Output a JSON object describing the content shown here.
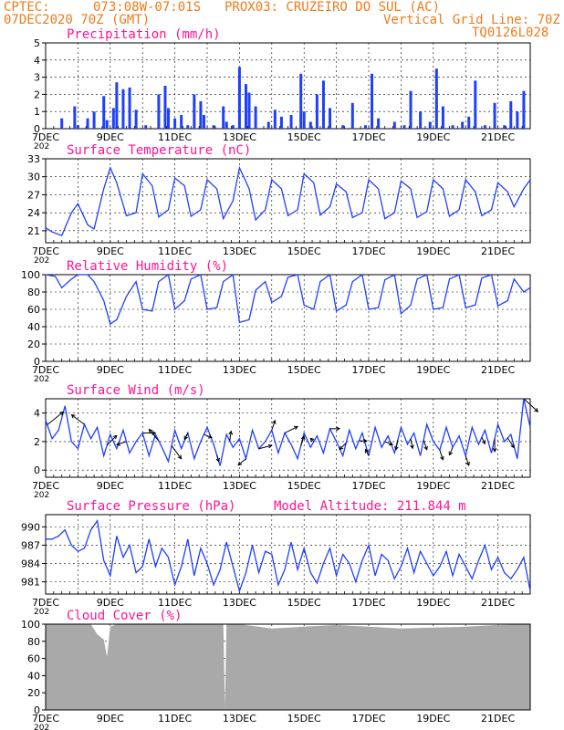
{
  "header": {
    "line1_left": "CPTEC:",
    "line1_coords": "073:08W-07:01S",
    "line1_station": "PROX03: CRUZEIRO DO SUL (AC)",
    "line2_left": "07DEC2020 70Z (GMT)",
    "line2_right": "Vertical Grid Line: 70Z",
    "line3_right": "TQ0126L028",
    "color_header": "#f07a1a",
    "color_title": "#ff1493",
    "color_series": "#1f3fff"
  },
  "x_tick_labels": [
    "7DEC",
    "9DEC",
    "11DEC",
    "13DEC",
    "15DEC",
    "17DEC",
    "19DEC",
    "21DEC"
  ],
  "x_tick_days": [
    7,
    9,
    11,
    13,
    15,
    17,
    19,
    21
  ],
  "x_range_days": [
    7,
    22
  ],
  "year_fragment": "202",
  "chart_data": [
    {
      "type": "bar",
      "title": "Precipitation (mm/h)",
      "ylim": [
        0,
        5
      ],
      "yticks": [
        0,
        1,
        2,
        3,
        4,
        5
      ],
      "color": "#1f3fff",
      "series": [
        {
          "name": "",
          "x": [
            7.5,
            7.9,
            8.0,
            8.3,
            8.5,
            8.8,
            8.9,
            9.1,
            9.2,
            9.4,
            9.6,
            9.8,
            10.1,
            10.5,
            10.7,
            10.8,
            11.0,
            11.2,
            11.4,
            11.6,
            11.8,
            11.9,
            12.2,
            12.5,
            12.6,
            12.8,
            13.0,
            13.2,
            13.3,
            13.5,
            13.9,
            14.1,
            14.3,
            14.6,
            14.9,
            15.0,
            15.2,
            15.4,
            15.6,
            15.8,
            16.2,
            16.5,
            16.9,
            17.1,
            17.3,
            17.8,
            18.1,
            18.3,
            18.6,
            18.9,
            19.1,
            19.3,
            19.6,
            19.9,
            20.1,
            20.3,
            20.6,
            20.9,
            21.2,
            21.4,
            21.6,
            21.8
          ],
          "values": [
            0.6,
            1.3,
            0.2,
            0.6,
            1.0,
            1.9,
            0.5,
            1.2,
            2.7,
            2.3,
            2.4,
            1.1,
            0.2,
            2.0,
            2.5,
            1.2,
            0.6,
            0.8,
            0.2,
            2.0,
            1.6,
            0.8,
            0.2,
            1.3,
            0.4,
            0.2,
            3.6,
            2.6,
            2.1,
            1.3,
            0.4,
            1.1,
            0.7,
            0.8,
            3.2,
            1.0,
            0.4,
            2.0,
            2.8,
            1.2,
            0.2,
            1.5,
            0.2,
            3.2,
            0.6,
            0.4,
            0.2,
            2.2,
            1.0,
            0.4,
            3.5,
            1.3,
            0.2,
            0.4,
            0.7,
            2.8,
            0.2,
            1.5,
            0.2,
            1.6,
            1.0,
            2.2
          ]
        }
      ]
    },
    {
      "type": "line",
      "title": "Surface Temperature (nC)",
      "ylim": [
        19,
        33
      ],
      "yticks": [
        21,
        24,
        27,
        30,
        33
      ],
      "series": [
        {
          "name": "",
          "x": [
            7.0,
            7.2,
            7.5,
            7.8,
            8.0,
            8.3,
            8.5,
            8.8,
            9.0,
            9.2,
            9.5,
            9.8,
            10.0,
            10.3,
            10.5,
            10.8,
            11.0,
            11.3,
            11.5,
            11.8,
            12.0,
            12.3,
            12.5,
            12.8,
            13.0,
            13.3,
            13.5,
            13.8,
            14.0,
            14.3,
            14.5,
            14.8,
            15.0,
            15.3,
            15.5,
            15.8,
            16.0,
            16.3,
            16.5,
            16.8,
            17.0,
            17.3,
            17.5,
            17.8,
            18.0,
            18.3,
            18.5,
            18.8,
            19.0,
            19.3,
            19.5,
            19.8,
            20.0,
            20.3,
            20.5,
            20.8,
            21.0,
            21.3,
            21.5,
            21.8,
            22.0
          ],
          "values": [
            21.5,
            20.8,
            20.2,
            24.0,
            25.5,
            22.0,
            21.3,
            28.0,
            31.5,
            29.0,
            23.5,
            24.0,
            30.5,
            28.5,
            23.3,
            24.5,
            29.8,
            28.5,
            23.4,
            24.5,
            29.5,
            28.0,
            23.0,
            26.0,
            31.5,
            28.0,
            22.8,
            24.5,
            29.5,
            28.0,
            23.5,
            24.5,
            30.5,
            29.0,
            23.6,
            25.0,
            28.8,
            27.5,
            23.2,
            24.0,
            29.5,
            28.0,
            23.0,
            24.0,
            29.3,
            28.0,
            23.2,
            24.2,
            29.5,
            28.0,
            23.4,
            24.5,
            29.5,
            27.5,
            23.5,
            24.5,
            29.0,
            27.5,
            25.0,
            28.0,
            29.5
          ]
        }
      ]
    },
    {
      "type": "line",
      "title": "Relative Humidity (%)",
      "ylim": [
        0,
        100
      ],
      "yticks": [
        0,
        20,
        40,
        60,
        80,
        100
      ],
      "series": [
        {
          "name": "",
          "x": [
            7.0,
            7.3,
            7.5,
            7.8,
            8.0,
            8.3,
            8.5,
            8.8,
            9.0,
            9.2,
            9.5,
            9.8,
            10.0,
            10.3,
            10.5,
            10.8,
            11.0,
            11.3,
            11.5,
            11.8,
            12.0,
            12.3,
            12.5,
            12.8,
            13.0,
            13.3,
            13.5,
            13.8,
            14.0,
            14.3,
            14.5,
            14.8,
            15.0,
            15.3,
            15.5,
            15.8,
            16.0,
            16.3,
            16.5,
            16.8,
            17.0,
            17.3,
            17.5,
            17.8,
            18.0,
            18.3,
            18.5,
            18.8,
            19.0,
            19.3,
            19.5,
            19.8,
            20.0,
            20.3,
            20.5,
            20.8,
            21.0,
            21.3,
            21.5,
            21.8,
            22.0
          ],
          "values": [
            100,
            98,
            85,
            95,
            100,
            100,
            92,
            70,
            43,
            48,
            75,
            92,
            60,
            58,
            92,
            100,
            60,
            70,
            95,
            100,
            60,
            62,
            92,
            100,
            45,
            48,
            82,
            92,
            68,
            75,
            97,
            100,
            65,
            60,
            92,
            100,
            58,
            65,
            92,
            100,
            60,
            62,
            94,
            100,
            55,
            65,
            95,
            100,
            60,
            62,
            95,
            100,
            62,
            65,
            96,
            100,
            64,
            70,
            95,
            80,
            85
          ]
        }
      ]
    },
    {
      "type": "line",
      "title": "Surface Wind (m/s)",
      "ylim": [
        -0.5,
        5
      ],
      "yticks": [
        0,
        2,
        4
      ],
      "series": [
        {
          "name": "",
          "x": [
            7.0,
            7.2,
            7.4,
            7.6,
            7.8,
            8.0,
            8.2,
            8.4,
            8.6,
            8.8,
            9.0,
            9.2,
            9.4,
            9.6,
            9.8,
            10.0,
            10.2,
            10.4,
            10.6,
            10.8,
            11.0,
            11.2,
            11.4,
            11.6,
            11.8,
            12.0,
            12.2,
            12.4,
            12.6,
            12.8,
            13.0,
            13.2,
            13.4,
            13.6,
            13.8,
            14.0,
            14.2,
            14.4,
            14.6,
            14.8,
            15.0,
            15.2,
            15.4,
            15.6,
            15.8,
            16.0,
            16.2,
            16.4,
            16.6,
            16.8,
            17.0,
            17.2,
            17.4,
            17.6,
            17.8,
            18.0,
            18.2,
            18.4,
            18.6,
            18.8,
            19.0,
            19.2,
            19.4,
            19.6,
            19.8,
            20.0,
            20.2,
            20.4,
            20.6,
            20.8,
            21.0,
            21.2,
            21.4,
            21.6,
            21.8,
            22.0
          ],
          "values": [
            3.5,
            2.2,
            2.8,
            4.5,
            2.0,
            1.5,
            3.2,
            2.2,
            3.0,
            1.0,
            2.5,
            1.5,
            2.8,
            1.2,
            2.0,
            2.6,
            1.0,
            2.5,
            1.6,
            0.6,
            2.8,
            1.5,
            2.6,
            0.8,
            2.0,
            3.0,
            1.8,
            0.3,
            2.5,
            1.6,
            2.2,
            0.8,
            2.8,
            1.5,
            2.0,
            2.8,
            1.2,
            2.6,
            1.8,
            0.8,
            2.6,
            1.6,
            2.4,
            1.2,
            2.9,
            2.0,
            1.0,
            2.8,
            1.5,
            2.6,
            1.0,
            3.0,
            1.6,
            2.4,
            1.2,
            3.0,
            1.8,
            2.6,
            1.0,
            3.2,
            2.0,
            1.4,
            3.0,
            1.6,
            2.4,
            1.0,
            3.0,
            1.8,
            2.8,
            1.2,
            3.2,
            2.0,
            2.5,
            0.8,
            5.0,
            3.0
          ]
        }
      ],
      "vectors_x": [
        7.05,
        8.2,
        8.9,
        9.5,
        10.0,
        10.5,
        10.9,
        11.4,
        11.9,
        12.3,
        12.7,
        13.2,
        13.6,
        14.0,
        14.4,
        14.9,
        15.3,
        15.8,
        16.3,
        16.7,
        17.0,
        17.5,
        17.9,
        18.3,
        18.7,
        19.2,
        19.6,
        20.0,
        20.5,
        20.9,
        21.3,
        21.8
      ],
      "vectors_u": [
        2.5,
        -2.0,
        1.5,
        -1.5,
        2.0,
        -1.5,
        1.5,
        -0.5,
        1.2,
        0.3,
        0.2,
        -1.2,
        2.0,
        0.5,
        2.0,
        0.5,
        -0.5,
        1.5,
        -1.0,
        1.2,
        -0.5,
        1.2,
        -0.3,
        0.3,
        0.5,
        0.5,
        -0.5,
        0.5,
        0.5,
        0.0,
        1.0,
        2.2
      ],
      "vectors_v": [
        2.0,
        1.5,
        1.5,
        -0.5,
        0.0,
        1.8,
        -2.0,
        -1.0,
        -0.5,
        -1.0,
        1.5,
        -1.0,
        0.5,
        1.5,
        1.0,
        1.5,
        0.5,
        0.0,
        -1.0,
        0.0,
        1.0,
        -0.5,
        -1.5,
        -1.5,
        -1.5,
        -1.5,
        -1.2,
        -1.5,
        -1.0,
        -2.0,
        -1.5,
        -2.0
      ]
    },
    {
      "type": "line",
      "title": "Surface Pressure (hPa)",
      "annotation": "Model Altitude: 211.844 m",
      "ylim": [
        979,
        992
      ],
      "yticks": [
        981,
        984,
        987,
        990
      ],
      "series": [
        {
          "name": "",
          "x": [
            7.0,
            7.2,
            7.4,
            7.6,
            7.8,
            8.0,
            8.2,
            8.4,
            8.6,
            8.8,
            9.0,
            9.2,
            9.4,
            9.6,
            9.8,
            10.0,
            10.2,
            10.4,
            10.6,
            10.8,
            11.0,
            11.2,
            11.4,
            11.6,
            11.8,
            12.0,
            12.2,
            12.4,
            12.6,
            12.8,
            13.0,
            13.2,
            13.4,
            13.6,
            13.8,
            14.0,
            14.2,
            14.4,
            14.6,
            14.8,
            15.0,
            15.2,
            15.4,
            15.6,
            15.8,
            16.0,
            16.2,
            16.4,
            16.6,
            16.8,
            17.0,
            17.2,
            17.4,
            17.6,
            17.8,
            18.0,
            18.2,
            18.4,
            18.6,
            18.8,
            19.0,
            19.2,
            19.4,
            19.6,
            19.8,
            20.0,
            20.2,
            20.4,
            20.6,
            20.8,
            21.0,
            21.2,
            21.4,
            21.6,
            21.8,
            22.0
          ],
          "values": [
            988.0,
            988.0,
            988.5,
            989.5,
            987.0,
            986.0,
            986.5,
            989.5,
            991.0,
            984.5,
            982.0,
            988.5,
            985.0,
            987.0,
            982.5,
            983.5,
            988.0,
            983.5,
            986.5,
            985.0,
            980.5,
            983.5,
            988.0,
            982.0,
            986.5,
            984.0,
            980.5,
            983.0,
            987.5,
            983.5,
            979.5,
            982.5,
            987.0,
            982.5,
            986.0,
            985.5,
            980.5,
            983.0,
            987.5,
            983.0,
            986.5,
            982.5,
            980.8,
            984.0,
            986.5,
            982.0,
            985.5,
            984.0,
            981.0,
            984.5,
            987.0,
            982.0,
            985.5,
            984.5,
            981.5,
            983.5,
            986.5,
            982.5,
            986.0,
            984.0,
            982.0,
            983.5,
            986.0,
            982.0,
            985.5,
            983.5,
            981.5,
            984.5,
            987.0,
            983.0,
            985.0,
            982.5,
            981.5,
            983.0,
            985.0,
            979.5
          ]
        }
      ]
    },
    {
      "type": "area",
      "title": "Cloud Cover (%)",
      "ylim": [
        0,
        100
      ],
      "yticks": [
        0,
        20,
        40,
        60,
        80,
        100
      ],
      "color": "#a9a9a9",
      "series": [
        {
          "name": "",
          "x": [
            7.0,
            8.4,
            8.6,
            8.8,
            8.9,
            9.0,
            9.2,
            12.5,
            12.55,
            12.6,
            13.0,
            14.0,
            15.0,
            16.0,
            17.0,
            18.0,
            19.0,
            20.0,
            21.0,
            22.0
          ],
          "values": [
            100,
            100,
            88,
            82,
            62,
            97,
            100,
            100,
            3,
            100,
            100,
            95,
            97,
            99,
            97,
            95,
            96,
            97,
            99,
            100
          ]
        }
      ]
    }
  ]
}
